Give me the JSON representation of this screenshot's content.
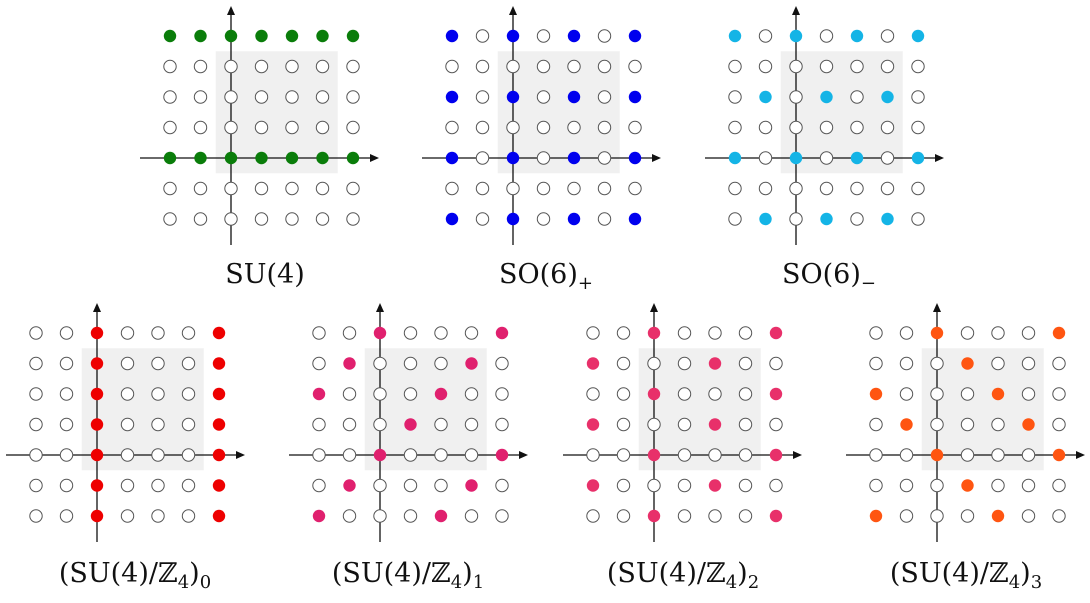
{
  "grid": {
    "columns": [
      -2,
      -1,
      0,
      1,
      2,
      3,
      4
    ],
    "rows": [
      4,
      3,
      2,
      1,
      0,
      -1,
      -2
    ]
  },
  "empty_dot_color": "#ffffff",
  "panels": [
    {
      "base": "SU(4)",
      "sub": "",
      "color": "#0a7d0a",
      "filled": [
        [
          -2,
          0
        ],
        [
          -1,
          0
        ],
        [
          0,
          0
        ],
        [
          1,
          0
        ],
        [
          2,
          0
        ],
        [
          3,
          0
        ],
        [
          4,
          0
        ],
        [
          -2,
          4
        ],
        [
          -1,
          4
        ],
        [
          0,
          4
        ],
        [
          1,
          4
        ],
        [
          2,
          4
        ],
        [
          3,
          4
        ],
        [
          4,
          4
        ]
      ]
    },
    {
      "base": "SO(6)",
      "sub": "+",
      "color": "#0000ee",
      "filled": [
        [
          -2,
          4
        ],
        [
          0,
          4
        ],
        [
          2,
          4
        ],
        [
          4,
          4
        ],
        [
          -2,
          2
        ],
        [
          0,
          2
        ],
        [
          2,
          2
        ],
        [
          4,
          2
        ],
        [
          -2,
          0
        ],
        [
          0,
          0
        ],
        [
          2,
          0
        ],
        [
          4,
          0
        ],
        [
          -2,
          -2
        ],
        [
          0,
          -2
        ],
        [
          2,
          -2
        ],
        [
          4,
          -2
        ]
      ]
    },
    {
      "base": "SO(6)",
      "sub": "−",
      "color": "#14b4e6",
      "filled": [
        [
          -2,
          4
        ],
        [
          0,
          4
        ],
        [
          2,
          4
        ],
        [
          4,
          4
        ],
        [
          -1,
          2
        ],
        [
          1,
          2
        ],
        [
          3,
          2
        ],
        [
          -2,
          0
        ],
        [
          0,
          0
        ],
        [
          2,
          0
        ],
        [
          4,
          0
        ],
        [
          -1,
          -2
        ],
        [
          1,
          -2
        ],
        [
          3,
          -2
        ]
      ]
    },
    {
      "base": "(SU(4)/ℤ",
      "sub2": "4",
      "tail": ")",
      "sub": "0",
      "color": "#ee0000",
      "filled": [
        [
          0,
          4
        ],
        [
          0,
          3
        ],
        [
          0,
          2
        ],
        [
          0,
          1
        ],
        [
          0,
          0
        ],
        [
          0,
          -1
        ],
        [
          0,
          -2
        ],
        [
          4,
          4
        ],
        [
          4,
          3
        ],
        [
          4,
          2
        ],
        [
          4,
          1
        ],
        [
          4,
          0
        ],
        [
          4,
          -1
        ],
        [
          4,
          -2
        ]
      ]
    },
    {
      "base": "(SU(4)/ℤ",
      "sub2": "4",
      "tail": ")",
      "sub": "1",
      "color": "#e0206e",
      "filled": [
        [
          0,
          4
        ],
        [
          4,
          4
        ],
        [
          -1,
          3
        ],
        [
          3,
          3
        ],
        [
          -2,
          2
        ],
        [
          2,
          2
        ],
        [
          1,
          1
        ],
        [
          0,
          0
        ],
        [
          4,
          0
        ],
        [
          -1,
          -1
        ],
        [
          3,
          -1
        ],
        [
          -2,
          -2
        ],
        [
          2,
          -2
        ]
      ]
    },
    {
      "base": "(SU(4)/ℤ",
      "sub2": "4",
      "tail": ")",
      "sub": "2",
      "color": "#e8306a",
      "filled": [
        [
          0,
          4
        ],
        [
          4,
          4
        ],
        [
          -2,
          3
        ],
        [
          2,
          3
        ],
        [
          0,
          2
        ],
        [
          4,
          2
        ],
        [
          -2,
          1
        ],
        [
          2,
          1
        ],
        [
          0,
          0
        ],
        [
          4,
          0
        ],
        [
          -2,
          -1
        ],
        [
          2,
          -1
        ],
        [
          0,
          -2
        ],
        [
          4,
          -2
        ]
      ]
    },
    {
      "base": "(SU(4)/ℤ",
      "sub2": "4",
      "tail": ")",
      "sub": "3",
      "color": "#ff5511",
      "filled": [
        [
          0,
          4
        ],
        [
          4,
          4
        ],
        [
          1,
          3
        ],
        [
          -2,
          2
        ],
        [
          2,
          2
        ],
        [
          -1,
          1
        ],
        [
          3,
          1
        ],
        [
          0,
          0
        ],
        [
          4,
          0
        ],
        [
          1,
          -1
        ],
        [
          -2,
          -2
        ],
        [
          2,
          -2
        ]
      ]
    }
  ]
}
